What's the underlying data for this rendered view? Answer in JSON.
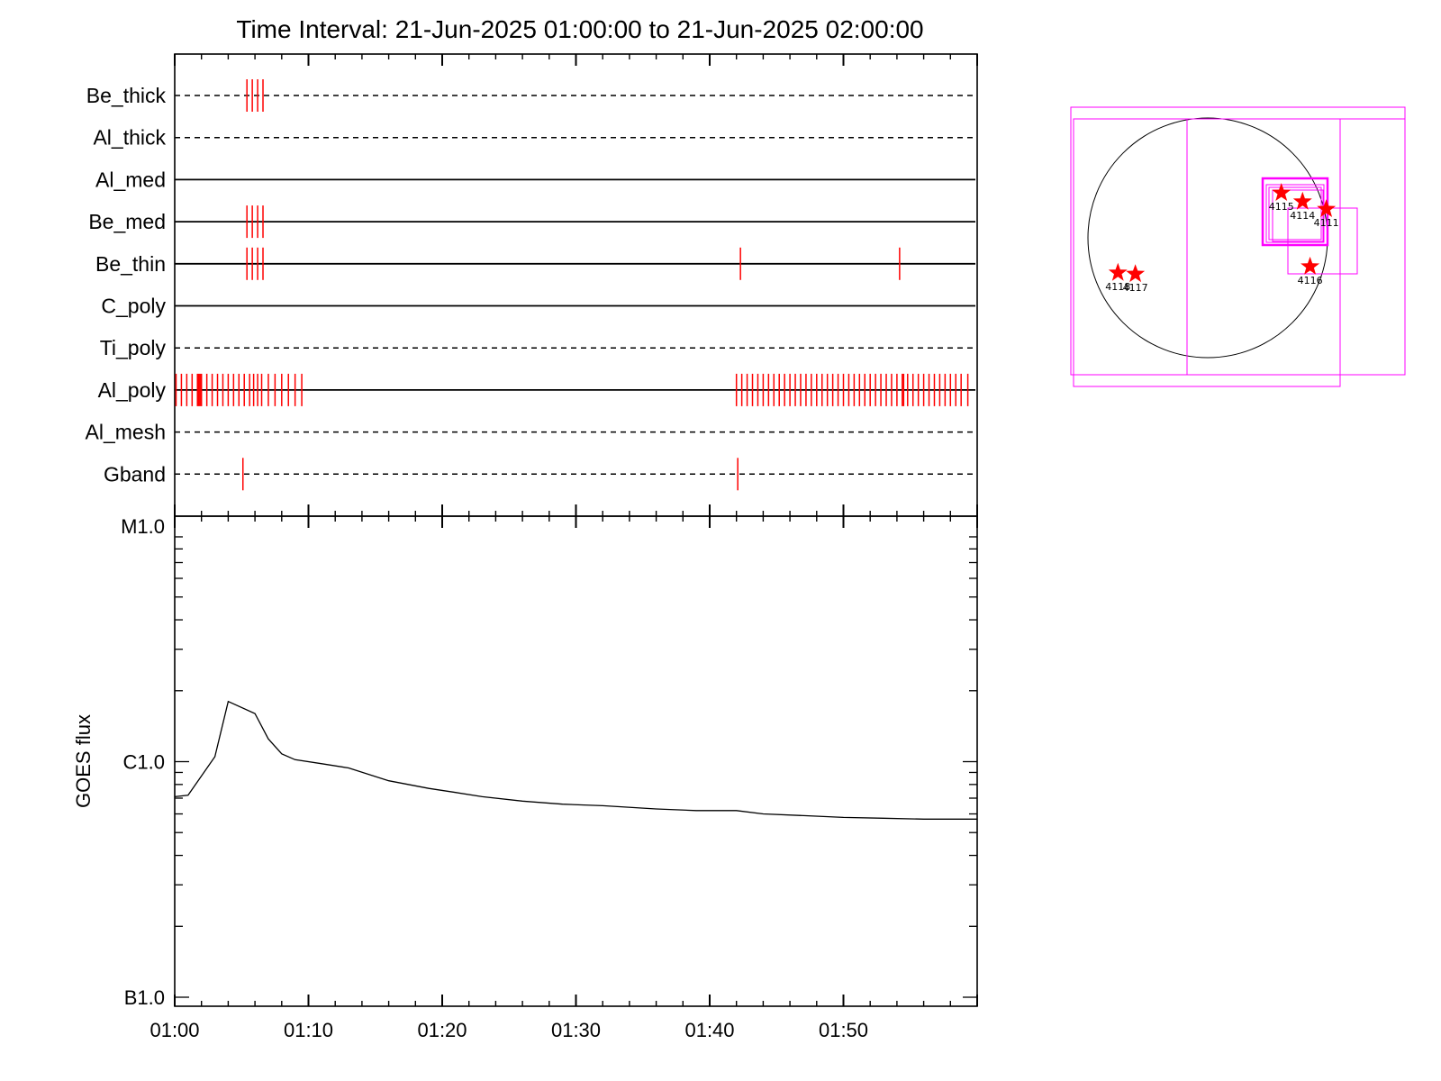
{
  "chart_data": [
    {
      "type": "timeline",
      "title": "Time Interval: 21-Jun-2025 01:00:00 to 21-Jun-2025 02:00:00",
      "x_range_minutes": [
        0,
        60
      ],
      "channels": [
        {
          "name": "Be_thick",
          "style": "dashed",
          "events": [
            5.4,
            5.8,
            6.2,
            6.6
          ]
        },
        {
          "name": "Al_thick",
          "style": "dashed",
          "events": []
        },
        {
          "name": "Al_med",
          "style": "solid",
          "events": []
        },
        {
          "name": "Be_med",
          "style": "solid",
          "events": [
            5.4,
            5.8,
            6.2,
            6.6
          ]
        },
        {
          "name": "Be_thin",
          "style": "solid",
          "events": [
            5.4,
            5.8,
            6.2,
            6.6,
            42.3,
            54.2
          ]
        },
        {
          "name": "C_poly",
          "style": "solid",
          "events": []
        },
        {
          "name": "Ti_poly",
          "style": "dashed",
          "events": []
        },
        {
          "name": "Al_poly",
          "style": "solid",
          "events": [
            0.1,
            0.5,
            0.9,
            1.3,
            1.7,
            1.8,
            1.9,
            2.0,
            2.4,
            2.8,
            3.2,
            3.6,
            4.0,
            4.4,
            4.8,
            5.2,
            5.6,
            5.9,
            6.2,
            6.5,
            7.0,
            7.5,
            8.0,
            8.5,
            9.0,
            9.5,
            42.0,
            42.4,
            42.8,
            43.2,
            43.6,
            44.0,
            44.4,
            44.8,
            45.2,
            45.6,
            46.0,
            46.4,
            46.8,
            47.2,
            47.6,
            48.0,
            48.4,
            48.8,
            49.2,
            49.6,
            50.0,
            50.4,
            50.8,
            51.2,
            51.6,
            52.0,
            52.4,
            52.8,
            53.2,
            53.6,
            54.0,
            54.4,
            54.5,
            54.8,
            55.2,
            55.6,
            56.0,
            56.4,
            56.8,
            57.2,
            57.6,
            58.0,
            58.4,
            58.8,
            59.3
          ]
        },
        {
          "name": "Al_mesh",
          "style": "dashed",
          "events": []
        },
        {
          "name": "Gband",
          "style": "dashed",
          "events": [
            5.1,
            42.1
          ]
        }
      ]
    },
    {
      "type": "line",
      "ylabel": "GOES flux",
      "y_scale": "log",
      "ylim": [
        1e-07,
        1e-05
      ],
      "y_ticks": [
        {
          "value": 1e-05,
          "label": "M1.0"
        },
        {
          "value": 1e-06,
          "label": "C1.0"
        },
        {
          "value": 1e-07,
          "label": "B1.0"
        }
      ],
      "x_range_minutes": [
        0,
        60
      ],
      "x_ticks": [
        {
          "value": 0,
          "label": "01:00"
        },
        {
          "value": 10,
          "label": "01:10"
        },
        {
          "value": 20,
          "label": "01:20"
        },
        {
          "value": 30,
          "label": "01:30"
        },
        {
          "value": 40,
          "label": "01:40"
        },
        {
          "value": 50,
          "label": "01:50"
        }
      ],
      "x_minutes": [
        0,
        1,
        3,
        4,
        6,
        7,
        8,
        9,
        11,
        13,
        16,
        19,
        21,
        23,
        26,
        29,
        32,
        36,
        39,
        42,
        44,
        47,
        50,
        53,
        56,
        60
      ],
      "flux": [
        7.1e-07,
        7.2e-07,
        1.05e-06,
        1.8e-06,
        1.6e-06,
        1.25e-06,
        1.08e-06,
        1.02e-06,
        9.8e-07,
        9.4e-07,
        8.3e-07,
        7.7e-07,
        7.4e-07,
        7.1e-07,
        6.8e-07,
        6.6e-07,
        6.5e-07,
        6.3e-07,
        6.2e-07,
        6.2e-07,
        6e-07,
        5.9e-07,
        5.8e-07,
        5.75e-07,
        5.7e-07,
        5.7e-07
      ]
    },
    {
      "type": "scatter",
      "description_kind": "solar disk active region map",
      "solar_radius_arcsec": 960,
      "regions": [
        {
          "label": "4115",
          "x_arcsec": 590,
          "y_arcsec": 360
        },
        {
          "label": "4114",
          "x_arcsec": 760,
          "y_arcsec": 290
        },
        {
          "label": "4111",
          "x_arcsec": 950,
          "y_arcsec": 230
        },
        {
          "label": "4116",
          "x_arcsec": 820,
          "y_arcsec": -230
        },
        {
          "label": "4118",
          "x_arcsec": -720,
          "y_arcsec": -280
        },
        {
          "label": "4117",
          "x_arcsec": -580,
          "y_arcsec": -290
        }
      ]
    }
  ]
}
